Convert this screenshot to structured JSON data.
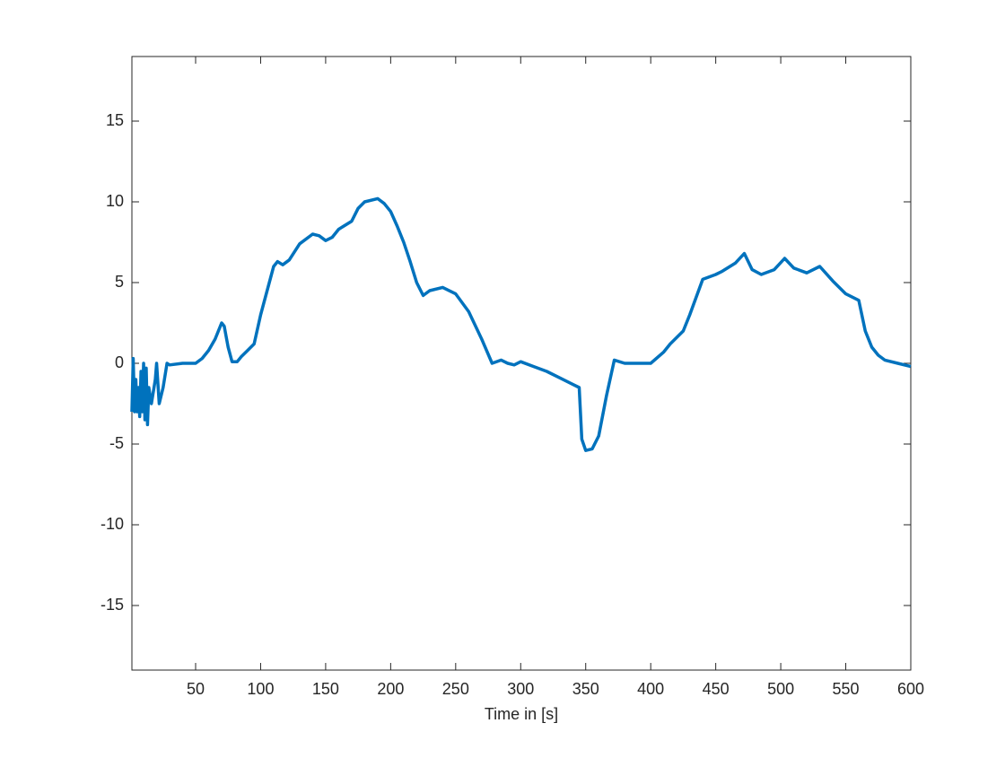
{
  "chart_data": {
    "type": "line",
    "xlabel": "Time in [s]",
    "x": [
      1,
      2,
      3,
      4,
      5,
      6,
      7,
      8,
      9,
      10,
      11,
      12,
      13,
      14,
      16,
      19,
      20,
      22,
      25,
      28,
      30,
      40,
      50,
      55,
      60,
      65,
      70,
      72,
      75,
      78,
      82,
      85,
      90,
      95,
      100,
      105,
      110,
      113,
      117,
      122,
      130,
      140,
      145,
      150,
      155,
      160,
      170,
      175,
      180,
      190,
      195,
      200,
      205,
      210,
      215,
      220,
      225,
      230,
      240,
      250,
      260,
      270,
      278,
      285,
      290,
      295,
      300,
      310,
      320,
      330,
      340,
      345,
      347,
      350,
      355,
      360,
      366,
      372,
      380,
      390,
      400,
      410,
      415,
      425,
      430,
      440,
      450,
      455,
      465,
      472,
      478,
      485,
      495,
      503,
      510,
      520,
      530,
      540,
      550,
      560,
      565,
      570,
      575,
      580,
      590,
      600
    ],
    "series": [
      {
        "color": "#0072bd",
        "values": [
          -3,
          0.3,
          -3,
          -1,
          -3,
          -1.5,
          -3.3,
          -0.5,
          -3,
          0,
          -3.5,
          -0.3,
          -3.8,
          -1.5,
          -2.5,
          -1,
          0,
          -2.5,
          -1.5,
          0,
          -0.1,
          0,
          0,
          0.3,
          0.8,
          1.5,
          2.5,
          2.3,
          1,
          0.1,
          0.1,
          0.4,
          0.8,
          1.2,
          3,
          4.5,
          6,
          6.3,
          6.1,
          6.4,
          7.4,
          8,
          7.9,
          7.6,
          7.8,
          8.3,
          8.8,
          9.6,
          10,
          10.2,
          9.9,
          9.4,
          8.5,
          7.5,
          6.3,
          5,
          4.2,
          4.5,
          4.7,
          4.3,
          3.2,
          1.5,
          0,
          0.2,
          0,
          -0.1,
          0.1,
          -0.2,
          -0.5,
          -0.9,
          -1.3,
          -1.5,
          -4.7,
          -5.4,
          -5.3,
          -4.5,
          -2,
          0.2,
          0,
          0,
          0,
          0.7,
          1.2,
          2,
          3,
          5.2,
          5.5,
          5.7,
          6.2,
          6.8,
          5.8,
          5.5,
          5.8,
          6.5,
          5.9,
          5.6,
          6,
          5.1,
          4.3,
          3.9,
          2,
          1,
          0.5,
          0.2,
          0,
          -0.2
        ]
      }
    ],
    "xlim": [
      1,
      600
    ],
    "ylim": [
      -19,
      19
    ],
    "xticks": [
      50,
      100,
      150,
      200,
      250,
      300,
      350,
      400,
      450,
      500,
      550,
      600
    ],
    "yticks": [
      -15,
      -10,
      -5,
      0,
      5,
      10,
      15
    ],
    "grid": false
  }
}
